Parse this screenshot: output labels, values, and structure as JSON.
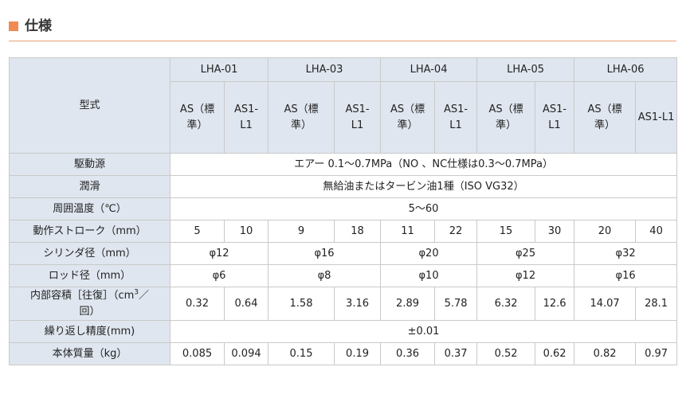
{
  "section": {
    "title": "仕様"
  },
  "table": {
    "model_label": "型式",
    "models": [
      "LHA-01",
      "LHA-03",
      "LHA-04",
      "LHA-05",
      "LHA-06"
    ],
    "variants": [
      "AS（標準）",
      "AS1-L1",
      "AS（標準）",
      "AS1-L1",
      "AS（標準）",
      "AS1-L1",
      "AS（標準）",
      "AS1-L1",
      "AS（標準）",
      "AS1-L1"
    ],
    "variant_std_line1": "AS（標",
    "variant_std_line2": "準）",
    "variant_l1_line1": "AS1-",
    "variant_l1_line2": "L1",
    "variant_l1_full": "AS1-L1",
    "rows": {
      "power": {
        "label": "駆動源",
        "value": "エアー 0.1～0.7MPa（NO 、NC仕様は0.3～0.7MPa）"
      },
      "lubrication": {
        "label": "潤滑",
        "value": "無給油またはタービン油1種（ISO VG32）"
      },
      "ambient_temp": {
        "label": "周囲温度（℃）",
        "value": "5～60"
      },
      "stroke": {
        "label": "動作ストローク（mm）",
        "values": [
          "5",
          "10",
          "9",
          "18",
          "11",
          "22",
          "15",
          "30",
          "20",
          "40"
        ]
      },
      "cylinder_bore": {
        "label": "シリンダ径（mm）",
        "values": [
          "φ12",
          "φ16",
          "φ20",
          "φ25",
          "φ32"
        ]
      },
      "rod_diameter": {
        "label": "ロッド径（mm）",
        "values": [
          "φ6",
          "φ8",
          "φ10",
          "φ12",
          "φ16"
        ]
      },
      "volume": {
        "label_line1": "内部容積［往復］（cm",
        "label_sup": "3",
        "label_line1_end": "／",
        "label_line2": "回）",
        "values": [
          "0.32",
          "0.64",
          "1.58",
          "3.16",
          "2.89",
          "5.78",
          "6.32",
          "12.6",
          "14.07",
          "28.1"
        ]
      },
      "repeatability": {
        "label": "繰り返し精度(mm)",
        "value": "±0.01"
      },
      "mass": {
        "label": "本体質量（kg）",
        "values": [
          "0.085",
          "0.094",
          "0.15",
          "0.19",
          "0.36",
          "0.37",
          "0.52",
          "0.62",
          "0.82",
          "0.97"
        ]
      }
    }
  }
}
